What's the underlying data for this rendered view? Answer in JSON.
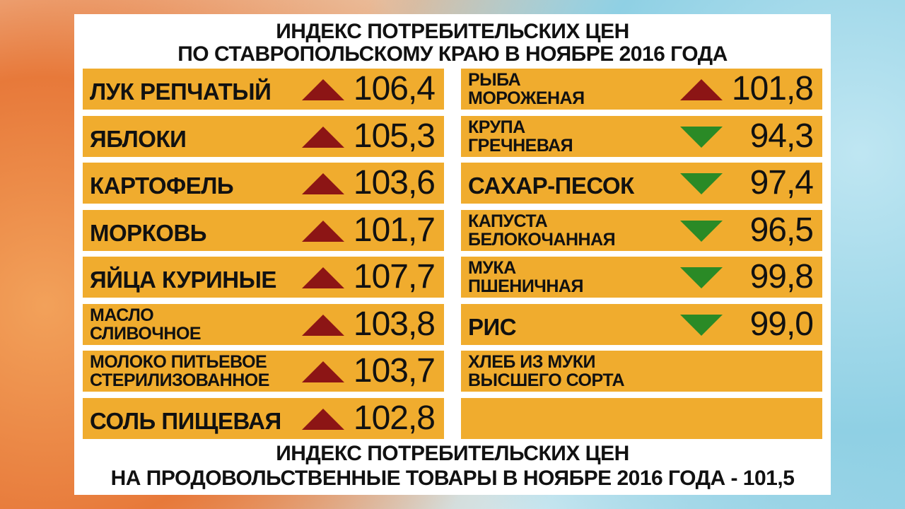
{
  "header": {
    "lines": [
      "ИНДЕКС ПОТРЕБИТЕЛЬСКИХ ЦЕН",
      "ПО СТАВРОПОЛЬСКОМУ КРАЮ В НОЯБРЕ 2016 ГОДА"
    ]
  },
  "left": [
    {
      "label": [
        "ЛУК РЕПЧАТЫЙ"
      ],
      "direction": "up",
      "value": "106,4"
    },
    {
      "label": [
        "ЯБЛОКИ"
      ],
      "direction": "up",
      "value": "105,3"
    },
    {
      "label": [
        "КАРТОФЕЛЬ"
      ],
      "direction": "up",
      "value": "103,6"
    },
    {
      "label": [
        "МОРКОВЬ"
      ],
      "direction": "up",
      "value": "101,7"
    },
    {
      "label": [
        "ЯЙЦА КУРИНЫЕ"
      ],
      "direction": "up",
      "value": "107,7"
    },
    {
      "label": [
        "МАСЛО",
        "СЛИВОЧНОЕ"
      ],
      "direction": "up",
      "value": "103,8"
    },
    {
      "label": [
        "МОЛОКО ПИТЬЕВОЕ",
        "СТЕРИЛИЗОВАННОЕ"
      ],
      "direction": "up",
      "value": "103,7"
    },
    {
      "label": [
        "СОЛЬ ПИЩЕВАЯ"
      ],
      "direction": "up",
      "value": "102,8"
    }
  ],
  "right": [
    {
      "label": [
        "РЫБА",
        "МОРОЖЕНАЯ"
      ],
      "direction": "up",
      "value": "101,8"
    },
    {
      "label": [
        "КРУПА",
        "ГРЕЧНЕВАЯ"
      ],
      "direction": "down",
      "value": "94,3"
    },
    {
      "label": [
        "САХАР-ПЕСОК"
      ],
      "direction": "down",
      "value": "97,4"
    },
    {
      "label": [
        "КАПУСТА",
        "БЕЛОКОЧАННАЯ"
      ],
      "direction": "down",
      "value": "96,5"
    },
    {
      "label": [
        "МУКА",
        "ПШЕНИЧНАЯ"
      ],
      "direction": "down",
      "value": "99,8"
    },
    {
      "label": [
        "РИС"
      ],
      "direction": "down",
      "value": "99,0"
    },
    {
      "label": [
        "ХЛЕБ ИЗ МУКИ",
        "ВЫСШЕГО СОРТА"
      ]
    }
  ],
  "footer": {
    "lines": [
      "ИНДЕКС ПОТРЕБИТЕЛЬСКИХ ЦЕН",
      "НА ПРОДОВОЛЬСТВЕННЫЕ ТОВАРЫ В НОЯБРЕ 2016 ГОДА - 101,5"
    ]
  }
}
